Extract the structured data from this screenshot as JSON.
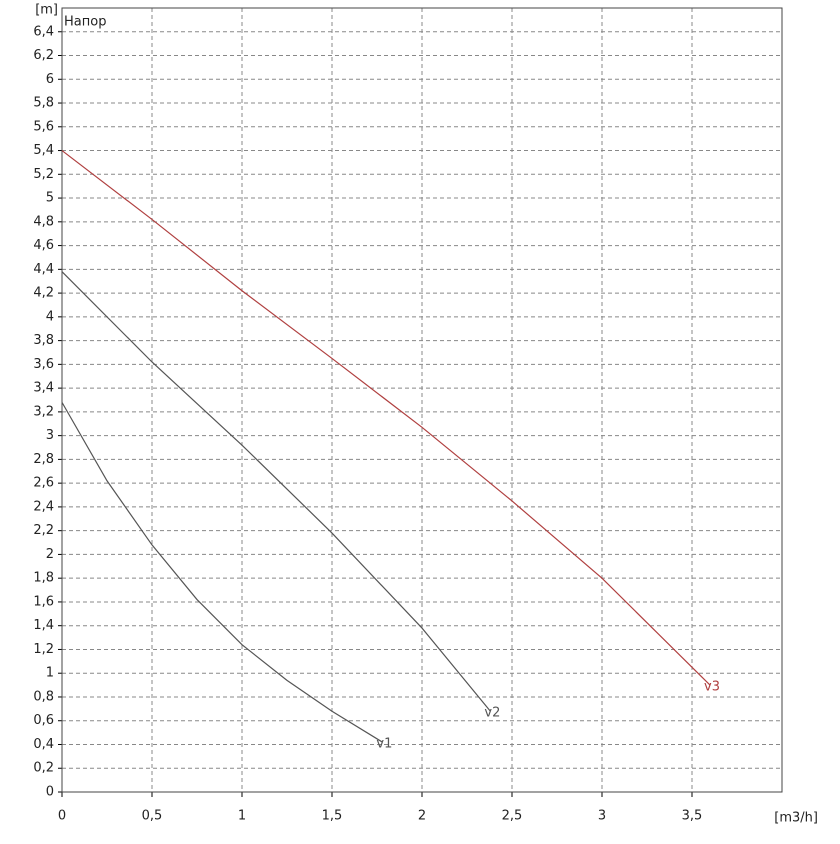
{
  "chart_data": {
    "type": "line",
    "annotation": "Напор",
    "y_label": "[m]",
    "x_label": "[m3/h]",
    "xlim": [
      0,
      4
    ],
    "ylim": [
      0,
      6.6
    ],
    "xticks": [
      0,
      {
        "value": 0.5,
        "label": "0,5"
      },
      1,
      {
        "value": 1.5,
        "label": "1,5"
      },
      2,
      {
        "value": 2.5,
        "label": "2,5"
      },
      3,
      {
        "value": 3.5,
        "label": "3,5"
      }
    ],
    "yticks": [
      0,
      {
        "value": 0.2,
        "label": "0,2"
      },
      {
        "value": 0.4,
        "label": "0,4"
      },
      {
        "value": 0.6,
        "label": "0,6"
      },
      {
        "value": 0.8,
        "label": "0,8"
      },
      1,
      {
        "value": 1.2,
        "label": "1,2"
      },
      {
        "value": 1.4,
        "label": "1,4"
      },
      {
        "value": 1.6,
        "label": "1,6"
      },
      {
        "value": 1.8,
        "label": "1,8"
      },
      2,
      {
        "value": 2.2,
        "label": "2,2"
      },
      {
        "value": 2.4,
        "label": "2,4"
      },
      {
        "value": 2.6,
        "label": "2,6"
      },
      {
        "value": 2.8,
        "label": "2,8"
      },
      3,
      {
        "value": 3.2,
        "label": "3,2"
      },
      {
        "value": 3.4,
        "label": "3,4"
      },
      {
        "value": 3.6,
        "label": "3,6"
      },
      {
        "value": 3.8,
        "label": "3,8"
      },
      4,
      {
        "value": 4.2,
        "label": "4,2"
      },
      {
        "value": 4.4,
        "label": "4,4"
      },
      {
        "value": 4.6,
        "label": "4,6"
      },
      {
        "value": 4.8,
        "label": "4,8"
      },
      5,
      {
        "value": 5.2,
        "label": "5,2"
      },
      {
        "value": 5.4,
        "label": "5,4"
      },
      {
        "value": 5.6,
        "label": "5,6"
      },
      {
        "value": 5.8,
        "label": "5,8"
      },
      6,
      {
        "value": 6.2,
        "label": "6,2"
      },
      {
        "value": 6.4,
        "label": "6,4"
      }
    ],
    "grid": true,
    "series": [
      {
        "name": "v1",
        "color": "#555555",
        "x": [
          0,
          0.25,
          0.5,
          0.75,
          1,
          1.25,
          1.5,
          1.78
        ],
        "values": [
          3.28,
          2.62,
          2.08,
          1.62,
          1.24,
          0.94,
          0.68,
          0.42
        ]
      },
      {
        "name": "v2",
        "color": "#555555",
        "x": [
          0,
          0.5,
          1,
          1.5,
          2,
          2.38
        ],
        "values": [
          4.38,
          3.62,
          2.92,
          2.18,
          1.38,
          0.68
        ]
      },
      {
        "name": "v3",
        "color": "#b04040",
        "x": [
          0,
          0.5,
          1,
          1.5,
          2,
          2.5,
          3,
          3.6
        ],
        "values": [
          5.4,
          4.82,
          4.22,
          3.65,
          3.07,
          2.45,
          1.8,
          0.9
        ]
      }
    ]
  }
}
